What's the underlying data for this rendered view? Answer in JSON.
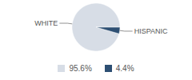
{
  "chart_data": {
    "type": "pie",
    "categories": [
      "WHITE",
      "HISPANIC"
    ],
    "values": [
      95.6,
      4.4
    ],
    "value_labels": [
      "95.6%",
      "4.4%"
    ],
    "colors": [
      "#d7dde6",
      "#2d4f73"
    ]
  }
}
